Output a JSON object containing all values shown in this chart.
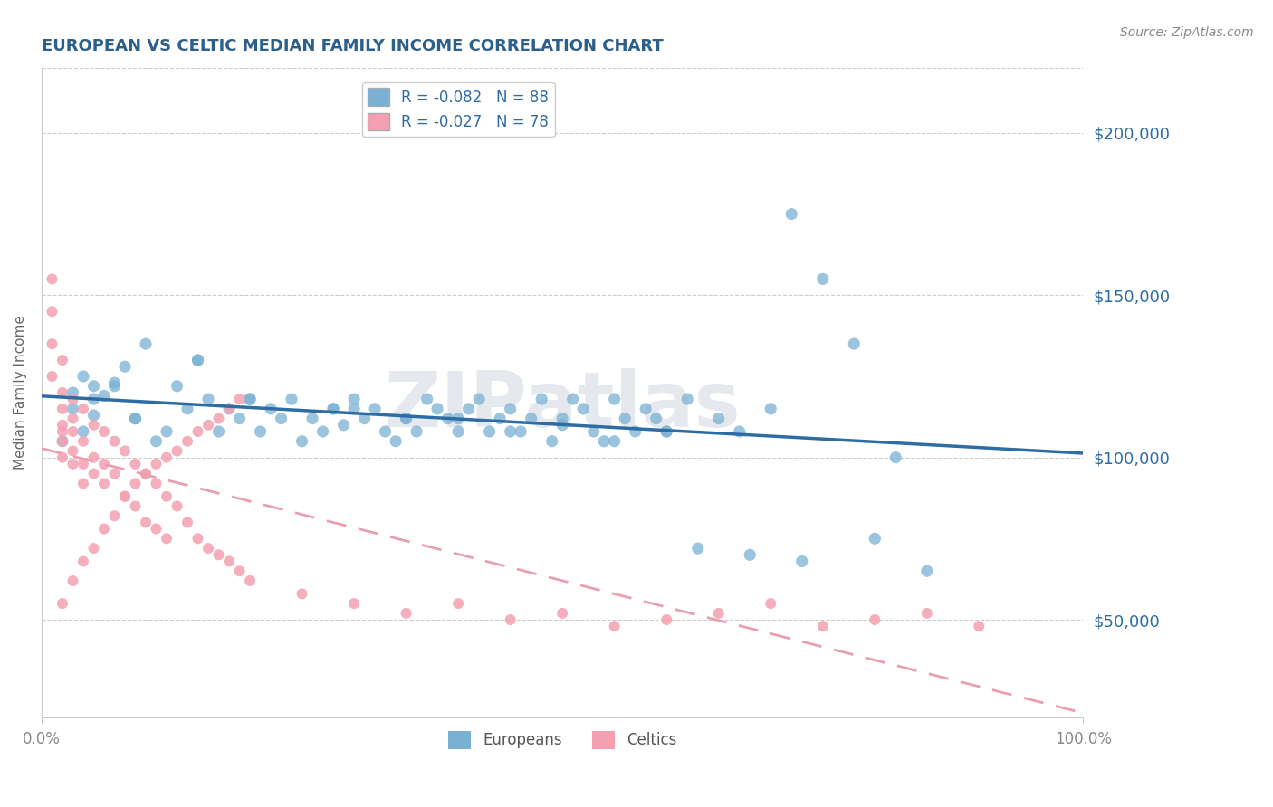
{
  "title": "EUROPEAN VS CELTIC MEDIAN FAMILY INCOME CORRELATION CHART",
  "title_color": "#2c5f8a",
  "source_text": "Source: ZipAtlas.com",
  "ylabel": "Median Family Income",
  "xlim": [
    0,
    1.0
  ],
  "ylim": [
    20000,
    220000
  ],
  "yticks": [
    50000,
    100000,
    150000,
    200000
  ],
  "ytick_labels": [
    "$50,000",
    "$100,000",
    "$150,000",
    "$200,000"
  ],
  "xtick_labels": [
    "0.0%",
    "100.0%"
  ],
  "xticks": [
    0.0,
    1.0
  ],
  "watermark": "ZIPatlas",
  "blue_color": "#7ab0d4",
  "pink_color": "#f4a0b0",
  "blue_line_color": "#2e6da4",
  "pink_line_color": "#e8a0b0",
  "grid_color": "#cccccc",
  "axis_color": "#888888",
  "europeans_x": [
    0.02,
    0.03,
    0.04,
    0.04,
    0.05,
    0.05,
    0.06,
    0.07,
    0.08,
    0.09,
    0.1,
    0.11,
    0.12,
    0.13,
    0.14,
    0.15,
    0.16,
    0.17,
    0.18,
    0.19,
    0.2,
    0.21,
    0.22,
    0.23,
    0.24,
    0.25,
    0.26,
    0.27,
    0.28,
    0.29,
    0.3,
    0.31,
    0.32,
    0.33,
    0.34,
    0.35,
    0.36,
    0.37,
    0.38,
    0.39,
    0.4,
    0.41,
    0.42,
    0.43,
    0.44,
    0.45,
    0.46,
    0.47,
    0.48,
    0.49,
    0.5,
    0.51,
    0.52,
    0.53,
    0.54,
    0.55,
    0.56,
    0.57,
    0.58,
    0.59,
    0.6,
    0.62,
    0.65,
    0.67,
    0.7,
    0.72,
    0.75,
    0.78,
    0.8,
    0.85,
    0.03,
    0.05,
    0.07,
    0.09,
    0.15,
    0.2,
    0.3,
    0.4,
    0.5,
    0.6,
    0.28,
    0.35,
    0.45,
    0.55,
    0.63,
    0.68,
    0.73,
    0.82
  ],
  "europeans_y": [
    105000,
    120000,
    125000,
    108000,
    113000,
    122000,
    119000,
    123000,
    128000,
    112000,
    135000,
    105000,
    108000,
    122000,
    115000,
    130000,
    118000,
    108000,
    115000,
    112000,
    118000,
    108000,
    115000,
    112000,
    118000,
    105000,
    112000,
    108000,
    115000,
    110000,
    118000,
    112000,
    115000,
    108000,
    105000,
    112000,
    108000,
    118000,
    115000,
    112000,
    108000,
    115000,
    118000,
    108000,
    112000,
    115000,
    108000,
    112000,
    118000,
    105000,
    112000,
    118000,
    115000,
    108000,
    105000,
    118000,
    112000,
    108000,
    115000,
    112000,
    108000,
    118000,
    112000,
    108000,
    115000,
    175000,
    155000,
    135000,
    75000,
    65000,
    115000,
    118000,
    122000,
    112000,
    130000,
    118000,
    115000,
    112000,
    110000,
    108000,
    115000,
    112000,
    108000,
    105000,
    72000,
    70000,
    68000,
    100000
  ],
  "celtics_x": [
    0.01,
    0.01,
    0.01,
    0.01,
    0.02,
    0.02,
    0.02,
    0.02,
    0.02,
    0.02,
    0.02,
    0.03,
    0.03,
    0.03,
    0.03,
    0.03,
    0.04,
    0.04,
    0.04,
    0.04,
    0.05,
    0.05,
    0.05,
    0.06,
    0.06,
    0.06,
    0.07,
    0.07,
    0.08,
    0.08,
    0.09,
    0.09,
    0.1,
    0.1,
    0.11,
    0.11,
    0.12,
    0.12,
    0.13,
    0.14,
    0.15,
    0.16,
    0.17,
    0.18,
    0.19,
    0.2,
    0.25,
    0.3,
    0.35,
    0.4,
    0.45,
    0.5,
    0.55,
    0.6,
    0.65,
    0.7,
    0.75,
    0.8,
    0.85,
    0.9,
    0.02,
    0.03,
    0.04,
    0.05,
    0.06,
    0.07,
    0.08,
    0.09,
    0.1,
    0.11,
    0.12,
    0.13,
    0.14,
    0.15,
    0.16,
    0.17,
    0.18,
    0.19
  ],
  "celtics_y": [
    155000,
    145000,
    135000,
    125000,
    130000,
    120000,
    115000,
    110000,
    108000,
    105000,
    100000,
    98000,
    118000,
    112000,
    108000,
    102000,
    115000,
    105000,
    98000,
    92000,
    110000,
    100000,
    95000,
    108000,
    98000,
    92000,
    105000,
    95000,
    102000,
    88000,
    98000,
    85000,
    95000,
    80000,
    92000,
    78000,
    88000,
    75000,
    85000,
    80000,
    75000,
    72000,
    70000,
    68000,
    65000,
    62000,
    58000,
    55000,
    52000,
    55000,
    50000,
    52000,
    48000,
    50000,
    52000,
    55000,
    48000,
    50000,
    52000,
    48000,
    55000,
    62000,
    68000,
    72000,
    78000,
    82000,
    88000,
    92000,
    95000,
    98000,
    100000,
    102000,
    105000,
    108000,
    110000,
    112000,
    115000,
    118000
  ]
}
